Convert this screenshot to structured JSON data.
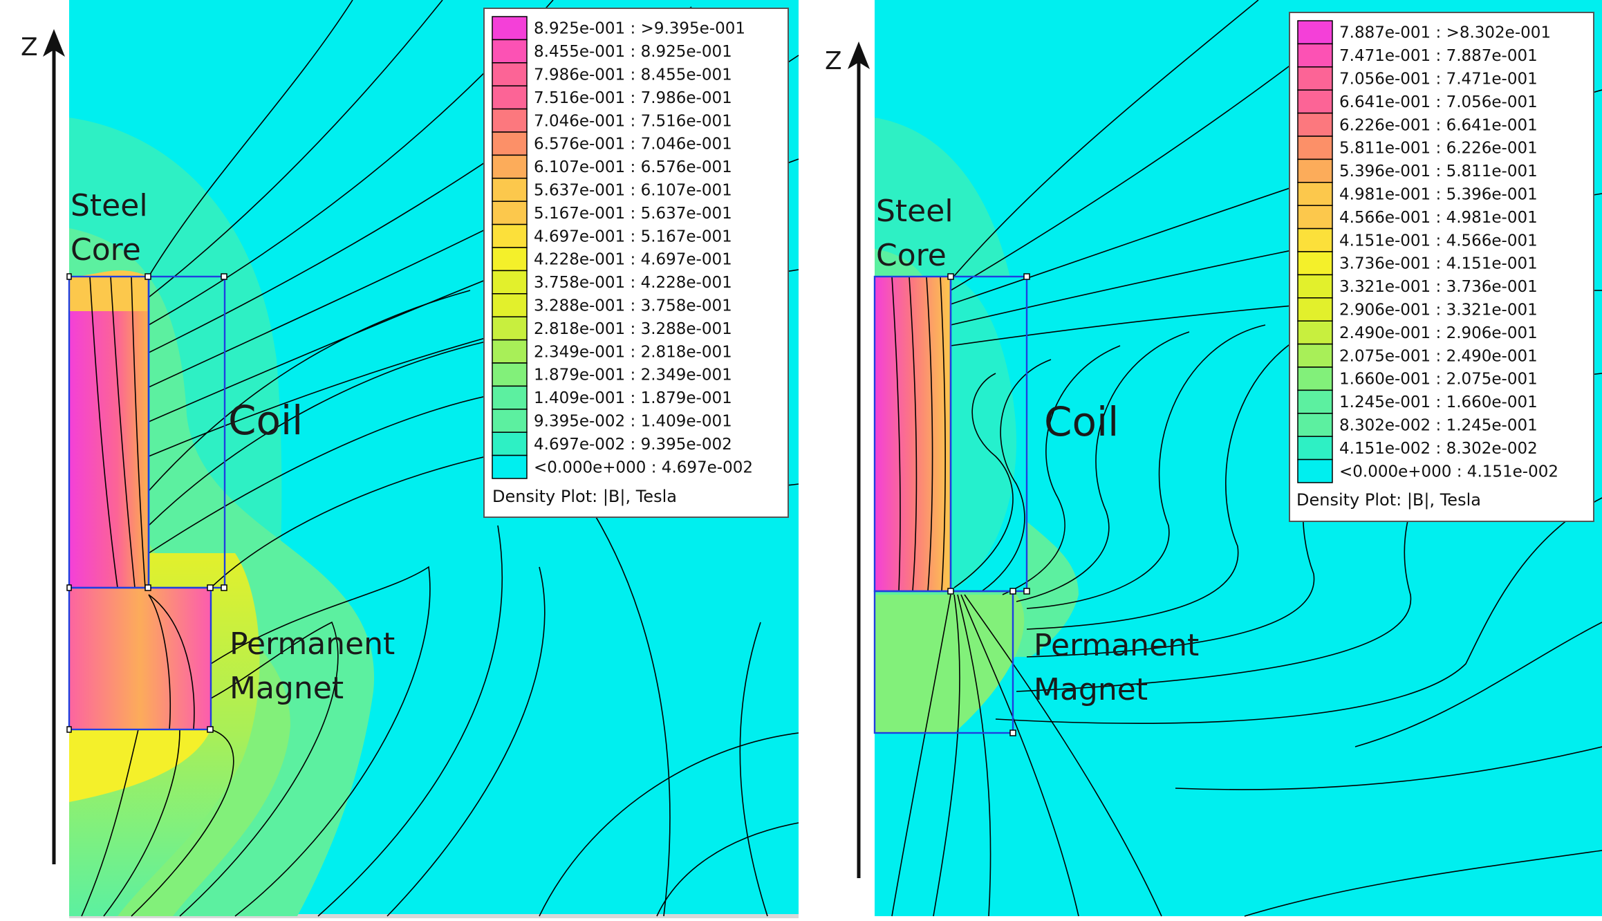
{
  "colors": {
    "background": "#00efef",
    "contour_line": "#000000",
    "geometry_outline": "#1f3fe0",
    "legend_scale_low_to_high": [
      "#00efef",
      "#2ef0c4",
      "#5cf0a0",
      "#82f07a",
      "#a8ef58",
      "#c8ef3e",
      "#e2f02c",
      "#f4f02a",
      "#fce03a",
      "#fcc84c",
      "#fcac5a",
      "#fc9068",
      "#fc787e",
      "#fc6496",
      "#fc52b4",
      "#f440d8"
    ]
  },
  "axis_label": "Z",
  "panels": [
    {
      "region_labels": {
        "steel_core": [
          "Steel",
          "Core"
        ],
        "coil": "Coil",
        "permanent_magnet": [
          "Permanent",
          "Magnet"
        ]
      },
      "legend": {
        "entries": [
          "8.925e-001 : >9.395e-001",
          "8.455e-001 : 8.925e-001",
          "7.986e-001 : 8.455e-001",
          "7.516e-001 : 7.986e-001",
          "7.046e-001 : 7.516e-001",
          "6.576e-001 : 7.046e-001",
          "6.107e-001 : 6.576e-001",
          "5.637e-001 : 6.107e-001",
          "5.167e-001 : 5.637e-001",
          "4.697e-001 : 5.167e-001",
          "4.228e-001 : 4.697e-001",
          "3.758e-001 : 4.228e-001",
          "3.288e-001 : 3.758e-001",
          "2.818e-001 : 3.288e-001",
          "2.349e-001 : 2.818e-001",
          "1.879e-001 : 2.349e-001",
          "1.409e-001 : 1.879e-001",
          "9.395e-002 : 1.409e-001",
          "4.697e-002 : 9.395e-002",
          "<0.000e+000 : 4.697e-002"
        ],
        "footer": "Density Plot: |B|, Tesla"
      }
    },
    {
      "region_labels": {
        "steel_core": [
          "Steel",
          "Core"
        ],
        "coil": "Coil",
        "permanent_magnet": [
          "Permanent",
          "Magnet"
        ]
      },
      "legend": {
        "entries": [
          "7.887e-001 : >8.302e-001",
          "7.471e-001 : 7.887e-001",
          "7.056e-001 : 7.471e-001",
          "6.641e-001 : 7.056e-001",
          "6.226e-001 : 6.641e-001",
          "5.811e-001 : 6.226e-001",
          "5.396e-001 : 5.811e-001",
          "4.981e-001 : 5.396e-001",
          "4.566e-001 : 4.981e-001",
          "4.151e-001 : 4.566e-001",
          "3.736e-001 : 4.151e-001",
          "3.321e-001 : 3.736e-001",
          "2.906e-001 : 3.321e-001",
          "2.490e-001 : 2.906e-001",
          "2.075e-001 : 2.490e-001",
          "1.660e-001 : 2.075e-001",
          "1.245e-001 : 1.660e-001",
          "8.302e-002 : 1.245e-001",
          "4.151e-002 : 8.302e-002",
          "<0.000e+000 : 4.151e-002"
        ],
        "footer": "Density Plot: |B|, Tesla"
      }
    }
  ]
}
